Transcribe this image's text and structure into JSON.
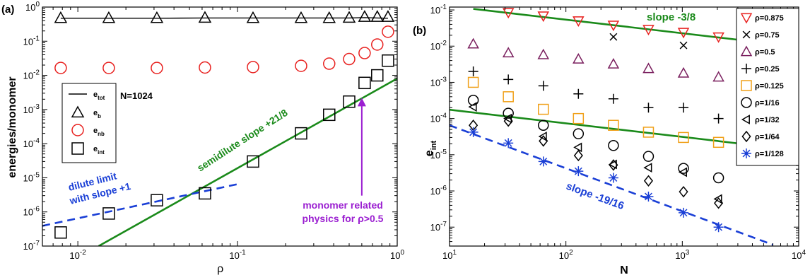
{
  "chart_data": [
    {
      "panel_label": "(a)",
      "type": "scatter",
      "xscale": "log",
      "yscale": "log",
      "xlabel": "ρ",
      "ylabel": "energies/monomer",
      "xlim": [
        0.006,
        1
      ],
      "ylim": [
        1e-07,
        1
      ],
      "x_ticks": [
        0.01,
        0.1,
        1
      ],
      "x_tick_labels": [
        [
          "10",
          "-2"
        ],
        [
          "10",
          "-1"
        ],
        [
          "10",
          "0"
        ]
      ],
      "y_ticks": [
        1e-07,
        1e-06,
        1e-05,
        0.0001,
        0.001,
        0.01,
        0.1,
        1
      ],
      "y_tick_labels": [
        [
          "10",
          "-7"
        ],
        [
          "10",
          "-6"
        ],
        [
          "10",
          "-5"
        ],
        [
          "10",
          "-4"
        ],
        [
          "10",
          "-3"
        ],
        [
          "10",
          "-2"
        ],
        [
          "10",
          "-1"
        ],
        [
          "10",
          "0"
        ]
      ],
      "legend_title": "N=1024",
      "legend_position": "left",
      "series": [
        {
          "legend_base": "e",
          "legend_sub": "tot",
          "marker": "line",
          "color": "#000000",
          "style": "solid",
          "x": [
            0.0078125,
            0.015625,
            0.03125,
            0.0625,
            0.125,
            0.25,
            0.375,
            0.5,
            0.625,
            0.75,
            0.875
          ],
          "y": [
            0.47,
            0.47,
            0.47,
            0.48,
            0.48,
            0.48,
            0.48,
            0.48,
            0.49,
            0.48,
            0.47
          ]
        },
        {
          "legend_base": "e",
          "legend_sub": "b",
          "marker": "triangle-up",
          "color": "#000000",
          "x": [
            0.0078125,
            0.015625,
            0.03125,
            0.0625,
            0.125,
            0.25,
            0.375,
            0.5,
            0.625,
            0.75,
            0.875
          ],
          "y": [
            0.48,
            0.48,
            0.48,
            0.49,
            0.48,
            0.48,
            0.48,
            0.49,
            0.52,
            0.52,
            0.52
          ]
        },
        {
          "legend_base": "e",
          "legend_sub": "nb",
          "marker": "circle",
          "color": "#e8211f",
          "x": [
            0.0078125,
            0.015625,
            0.03125,
            0.0625,
            0.125,
            0.25,
            0.375,
            0.5,
            0.625,
            0.75,
            0.875
          ],
          "y": [
            0.0165,
            0.0165,
            0.0165,
            0.017,
            0.0175,
            0.019,
            0.022,
            0.03,
            0.045,
            0.08,
            0.19
          ]
        },
        {
          "legend_base": "e",
          "legend_sub": "int",
          "marker": "square",
          "color": "#000000",
          "x": [
            0.0078125,
            0.015625,
            0.03125,
            0.0625,
            0.125,
            0.25,
            0.375,
            0.5,
            0.625,
            0.75,
            0.875
          ],
          "y": [
            2.5e-07,
            9e-07,
            2.2e-06,
            3.5e-06,
            3e-05,
            0.0002,
            0.0007,
            0.0017,
            0.006,
            0.01,
            0.027
          ]
        }
      ],
      "fit_lines": [
        {
          "label_lines": [
            "semidilute slope +21/8"
          ],
          "color": "#1a8a1a",
          "style": "solid",
          "slope": 2.625,
          "x": [
            0.0135,
            1
          ],
          "y_at_start": 1e-07
        },
        {
          "label_lines": [
            "dilute limit",
            "with slope +1"
          ],
          "color": "#1a3fd6",
          "style": "dashed",
          "slope": 1,
          "x": [
            0.006,
            0.1
          ],
          "y_at_start": 3.9e-07
        }
      ],
      "annotation": {
        "lines": [
          "monomer related",
          "physics for ρ>0.5"
        ],
        "color": "#9b1fd1",
        "arrow_points_to": {
          "x": 0.6,
          "y": 0.0022
        },
        "arrow_from": {
          "x": 0.6,
          "y": 3e-06
        }
      }
    },
    {
      "panel_label": "(b)",
      "type": "scatter",
      "xscale": "log",
      "yscale": "log",
      "xlabel": "N",
      "ylabel_base": "e",
      "ylabel_sub": "int",
      "xlim": [
        10,
        10000
      ],
      "ylim": [
        3e-08,
        0.12
      ],
      "x_ticks": [
        10,
        100,
        1000,
        10000
      ],
      "x_tick_labels": [
        [
          "10",
          "1"
        ],
        [
          "10",
          "2"
        ],
        [
          "10",
          "3"
        ],
        [
          "10",
          "4"
        ]
      ],
      "y_ticks": [
        1e-07,
        1e-06,
        1e-05,
        0.0001,
        0.001,
        0.01,
        0.1
      ],
      "y_tick_labels": [
        [
          "10",
          "-7"
        ],
        [
          "10",
          "-6"
        ],
        [
          "10",
          "-5"
        ],
        [
          "10",
          "-4"
        ],
        [
          "10",
          "-3"
        ],
        [
          "10",
          "-2"
        ],
        [
          "10",
          "-1"
        ]
      ],
      "legend_position": "right",
      "series": [
        {
          "name": "ρ=0.875",
          "marker": "triangle-down",
          "color": "#e8211f",
          "x": [
            32,
            64,
            128,
            256,
            512,
            1024,
            2048
          ],
          "y": [
            0.085,
            0.068,
            0.05,
            0.038,
            0.029,
            0.024,
            0.018
          ]
        },
        {
          "name": "ρ=0.75",
          "marker": "x",
          "color": "#000000",
          "x": [
            256,
            1024
          ],
          "y": [
            0.018,
            0.0105
          ]
        },
        {
          "name": "ρ=0.5",
          "marker": "triangle-up",
          "color": "#7a1f5e",
          "x": [
            16,
            32,
            64,
            128,
            256,
            512,
            1024,
            2048
          ],
          "y": [
            0.0115,
            0.0065,
            0.0058,
            0.0044,
            0.0032,
            0.0024,
            0.0018,
            0.0014
          ]
        },
        {
          "name": "ρ=0.25",
          "marker": "plus",
          "color": "#000000",
          "x": [
            16,
            32,
            64,
            128,
            256,
            512,
            1024,
            2048
          ],
          "y": [
            0.002,
            0.0012,
            0.0008,
            0.00048,
            0.00035,
            0.0002,
            0.0002,
            0.0001
          ]
        },
        {
          "name": "ρ=0.125",
          "marker": "square",
          "color": "#f0a018",
          "x": [
            16,
            32,
            64,
            128,
            256,
            512,
            1024,
            2048
          ],
          "y": [
            0.001,
            0.0004,
            0.00018,
            0.0001,
            6.5e-05,
            4.2e-05,
            3e-05,
            2.2e-05
          ]
        },
        {
          "name": "ρ=1/16",
          "marker": "circle",
          "color": "#000000",
          "x": [
            16,
            32,
            64,
            128,
            256,
            512,
            1024,
            2048
          ],
          "y": [
            0.00032,
            0.00014,
            6.5e-05,
            3.8e-05,
            1.8e-05,
            9e-06,
            4.2e-06,
            2.3e-06
          ]
        },
        {
          "name": "ρ=1/32",
          "marker": "triangle-left",
          "color": "#000000",
          "x": [
            16,
            32,
            64,
            128,
            256,
            512,
            1024,
            2048
          ],
          "y": [
            0.00021,
            0.0001,
            3.2e-05,
            1.6e-05,
            5.4e-06,
            4.4e-06,
            3.3e-06,
            6e-07
          ]
        },
        {
          "name": "ρ=1/64",
          "marker": "diamond",
          "color": "#000000",
          "x": [
            16,
            32,
            64,
            128,
            256,
            512,
            1024,
            2048
          ],
          "y": [
            6.5e-05,
            8.5e-05,
            2.4e-05,
            9.5e-06,
            5.2e-06,
            1.9e-06,
            9.5e-07,
            4.6e-07
          ]
        },
        {
          "name": "ρ=1/128",
          "marker": "asterisk",
          "color": "#1a3fd6",
          "x": [
            16,
            32,
            64,
            128,
            256,
            512,
            1024,
            2048
          ],
          "y": [
            4.2e-05,
            2.1e-05,
            6.5e-06,
            3.5e-06,
            2.3e-06,
            7e-07,
            2.5e-07,
            1e-07
          ]
        }
      ],
      "fit_lines": [
        {
          "label_lines": [
            "slope -3/8"
          ],
          "color": "#1a8a1a",
          "style": "solid",
          "slope": -0.375,
          "x": [
            16,
            5500
          ],
          "y_at_start": 0.107
        },
        {
          "label_lines": [],
          "color": "#1a8a1a",
          "style": "solid",
          "slope": -0.375,
          "x": [
            10,
            5500
          ],
          "y_at_start": 0.000175
        },
        {
          "label_lines": [
            "slope -19/16"
          ],
          "color": "#1a3fd6",
          "style": "dashed",
          "slope": -1.1875,
          "x": [
            10,
            6000
          ],
          "y_at_start": 6.5e-05
        }
      ]
    }
  ]
}
